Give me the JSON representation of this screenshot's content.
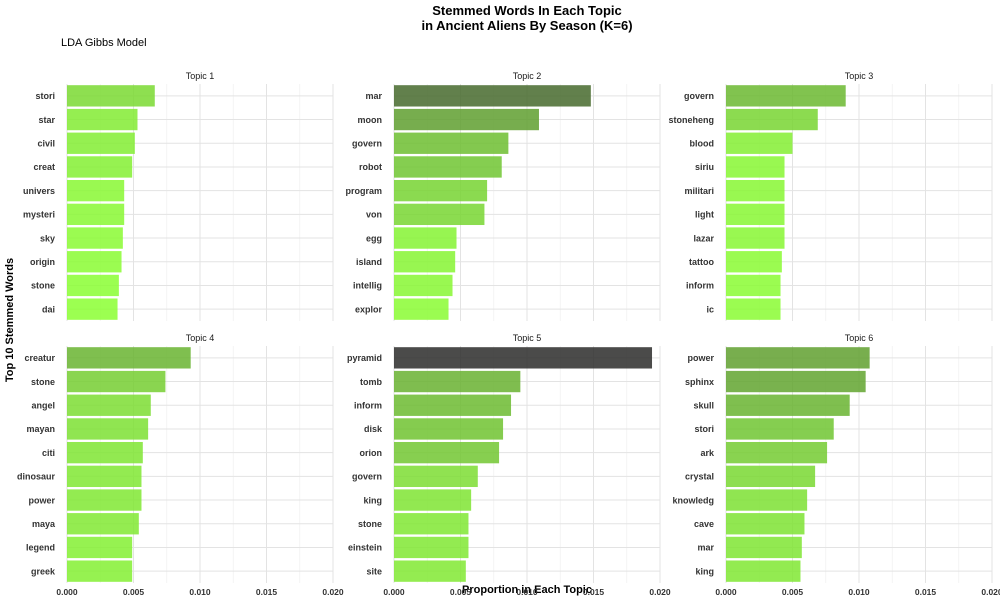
{
  "chart_data": {
    "type": "bar",
    "orientation": "horizontal",
    "title_line1": "Stemmed Words In Each Topic",
    "title_line2": "in Ancient Aliens By Season (K=6)",
    "subtitle": "LDA Gibbs Model",
    "xlabel": "Proportion in Each Topic",
    "ylabel": "Top 10 Stemmed Words",
    "xlim": [
      0,
      0.02
    ],
    "x_ticks": [
      "0.000",
      "0.005",
      "0.010",
      "0.015",
      "0.020"
    ],
    "x_tick_values": [
      0,
      0.005,
      0.01,
      0.015,
      0.02
    ],
    "grid": true,
    "color_low": "#8BFF33",
    "color_high": "#2A2A2A",
    "color_max_value": 0.0195,
    "panels": [
      {
        "topic": "Topic 1",
        "categories": [
          "stori",
          "star",
          "civil",
          "creat",
          "univers",
          "mysteri",
          "sky",
          "origin",
          "stone",
          "dai"
        ],
        "values": [
          0.0066,
          0.0053,
          0.0051,
          0.0049,
          0.0043,
          0.0043,
          0.0042,
          0.0041,
          0.0039,
          0.0038
        ]
      },
      {
        "topic": "Topic 2",
        "categories": [
          "mar",
          "moon",
          "govern",
          "robot",
          "program",
          "von",
          "egg",
          "island",
          "intellig",
          "explor"
        ],
        "values": [
          0.0148,
          0.0109,
          0.0086,
          0.0081,
          0.007,
          0.0068,
          0.0047,
          0.0046,
          0.0044,
          0.0041
        ]
      },
      {
        "topic": "Topic 3",
        "categories": [
          "govern",
          "stoneheng",
          "blood",
          "siriu",
          "militari",
          "light",
          "lazar",
          "tattoo",
          "inform",
          "ic"
        ],
        "values": [
          0.009,
          0.0069,
          0.005,
          0.0044,
          0.0044,
          0.0044,
          0.0044,
          0.0042,
          0.0041,
          0.0041
        ]
      },
      {
        "topic": "Topic 4",
        "categories": [
          "creatur",
          "stone",
          "angel",
          "mayan",
          "citi",
          "dinosaur",
          "power",
          "maya",
          "legend",
          "greek"
        ],
        "values": [
          0.0093,
          0.0074,
          0.0063,
          0.0061,
          0.0057,
          0.0056,
          0.0056,
          0.0054,
          0.0049,
          0.0049
        ]
      },
      {
        "topic": "Topic 5",
        "categories": [
          "pyramid",
          "tomb",
          "inform",
          "disk",
          "orion",
          "govern",
          "king",
          "stone",
          "einstein",
          "site"
        ],
        "values": [
          0.0194,
          0.0095,
          0.0088,
          0.0082,
          0.0079,
          0.0063,
          0.0058,
          0.0056,
          0.0056,
          0.0054
        ]
      },
      {
        "topic": "Topic 6",
        "categories": [
          "power",
          "sphinx",
          "skull",
          "stori",
          "ark",
          "crystal",
          "knowledg",
          "cave",
          "mar",
          "king"
        ],
        "values": [
          0.0108,
          0.0105,
          0.0093,
          0.0081,
          0.0076,
          0.0067,
          0.0061,
          0.0059,
          0.0057,
          0.0056
        ]
      }
    ]
  }
}
